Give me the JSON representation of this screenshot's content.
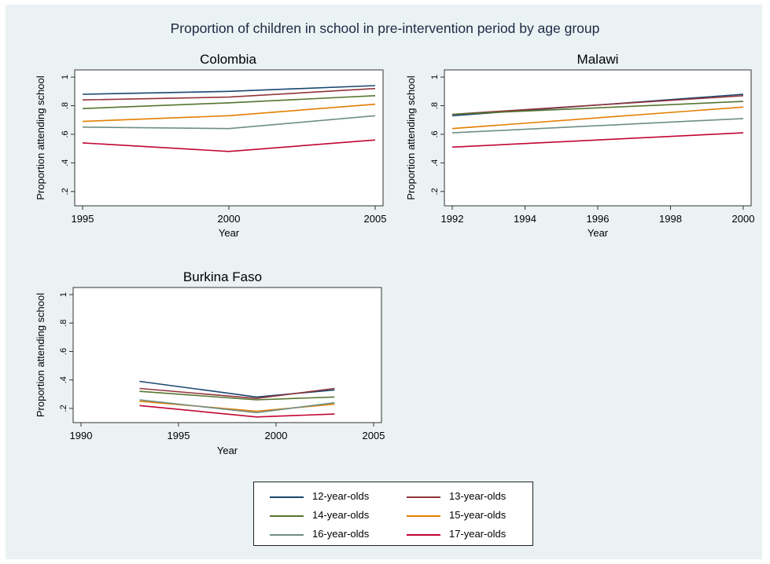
{
  "title": "Proportion of children in school in pre-intervention period by age group",
  "series_colors": [
    "#1a476f",
    "#90353b",
    "#55752f",
    "#e37e00",
    "#6e8e84",
    "#c10534"
  ],
  "legend": {
    "placement": "bottom-center",
    "items": [
      "12-year-olds",
      "13-year-olds",
      "14-year-olds",
      "15-year-olds",
      "16-year-olds",
      "17-year-olds"
    ]
  },
  "chart_data": [
    {
      "type": "line",
      "title": "Colombia",
      "xlabel": "Year",
      "ylabel": "Proportion attending school",
      "xlim": [
        1995,
        2005
      ],
      "ylim": [
        0.1,
        1.05
      ],
      "xticks": [
        1995,
        2000,
        2005
      ],
      "xtick_labels": [
        "1995",
        "2000",
        "2005"
      ],
      "yticks": [
        0.2,
        0.4,
        0.6,
        0.8,
        1
      ],
      "ytick_labels": [
        ".2",
        ".4",
        ".6",
        ".8",
        "1"
      ],
      "grid": false,
      "x": [
        1995,
        2000,
        2005
      ],
      "series": [
        {
          "name": "12-year-olds",
          "values": [
            0.88,
            0.9,
            0.94
          ]
        },
        {
          "name": "13-year-olds",
          "values": [
            0.84,
            0.86,
            0.92
          ]
        },
        {
          "name": "14-year-olds",
          "values": [
            0.78,
            0.82,
            0.87
          ]
        },
        {
          "name": "15-year-olds",
          "values": [
            0.69,
            0.73,
            0.81
          ]
        },
        {
          "name": "16-year-olds",
          "values": [
            0.65,
            0.64,
            0.73
          ]
        },
        {
          "name": "17-year-olds",
          "values": [
            0.54,
            0.48,
            0.56
          ]
        }
      ]
    },
    {
      "type": "line",
      "title": "Malawi",
      "xlabel": "Year",
      "ylabel": "Proportion attending school",
      "xlim": [
        1992,
        2000
      ],
      "ylim": [
        0.1,
        1.05
      ],
      "xticks": [
        1992,
        1994,
        1996,
        1998,
        2000
      ],
      "xtick_labels": [
        "1992",
        "1994",
        "1996",
        "1998",
        "2000"
      ],
      "yticks": [
        0.2,
        0.4,
        0.6,
        0.8,
        1
      ],
      "ytick_labels": [
        ".2",
        ".4",
        ".6",
        ".8",
        "1"
      ],
      "grid": false,
      "x": [
        1992,
        2000
      ],
      "series": [
        {
          "name": "12-year-olds",
          "values": [
            0.73,
            0.88
          ]
        },
        {
          "name": "13-year-olds",
          "values": [
            0.74,
            0.87
          ]
        },
        {
          "name": "14-year-olds",
          "values": [
            0.74,
            0.83
          ]
        },
        {
          "name": "15-year-olds",
          "values": [
            0.64,
            0.79
          ]
        },
        {
          "name": "16-year-olds",
          "values": [
            0.61,
            0.71
          ]
        },
        {
          "name": "17-year-olds",
          "values": [
            0.51,
            0.61
          ]
        }
      ]
    },
    {
      "type": "line",
      "title": "Burkina Faso",
      "xlabel": "Year",
      "ylabel": "Proportion attending school",
      "xlim": [
        1990,
        2005
      ],
      "ylim": [
        0.1,
        1.05
      ],
      "xticks": [
        1990,
        1995,
        2000,
        2005
      ],
      "xtick_labels": [
        "1990",
        "1995",
        "2000",
        "2005"
      ],
      "yticks": [
        0.2,
        0.4,
        0.6,
        0.8,
        1
      ],
      "ytick_labels": [
        ".2",
        ".4",
        ".6",
        ".8",
        "1"
      ],
      "grid": false,
      "x": [
        1993,
        1999,
        2003
      ],
      "series": [
        {
          "name": "12-year-olds",
          "values": [
            0.39,
            0.28,
            0.33
          ]
        },
        {
          "name": "13-year-olds",
          "values": [
            0.34,
            0.27,
            0.34
          ]
        },
        {
          "name": "14-year-olds",
          "values": [
            0.32,
            0.26,
            0.28
          ]
        },
        {
          "name": "15-year-olds",
          "values": [
            0.25,
            0.18,
            0.23
          ]
        },
        {
          "name": "16-year-olds",
          "values": [
            0.26,
            0.17,
            0.24
          ]
        },
        {
          "name": "17-year-olds",
          "values": [
            0.22,
            0.14,
            0.16
          ]
        }
      ]
    }
  ]
}
